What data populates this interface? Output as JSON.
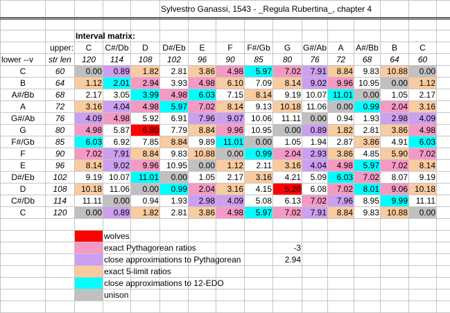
{
  "title": "Sylvestro Ganassi, 1543 - _Regula Rubertina_, chapter 4",
  "matrix_label": "Interval matrix:",
  "upper_label": "upper:",
  "lower_label": "lower --v",
  "strlen_label": "str len",
  "colors": {
    "g": "#c0c0c0",
    "v": "#cc9ff0",
    "o": "#f9cba0",
    "w": "#ffffff",
    "p": "#f49ac4",
    "c": "#00ffff",
    "r": "#ff0000"
  },
  "columns": [
    {
      "note": "C",
      "len": "120"
    },
    {
      "note": "C#/Db",
      "len": "114"
    },
    {
      "note": "D",
      "len": "108"
    },
    {
      "note": "D#/Eb",
      "len": "102"
    },
    {
      "note": "E",
      "len": "96"
    },
    {
      "note": "F",
      "len": "90"
    },
    {
      "note": "F#/Gb",
      "len": "85"
    },
    {
      "note": "G",
      "len": "80"
    },
    {
      "note": "G#/Ab",
      "len": "76"
    },
    {
      "note": "A",
      "len": "72"
    },
    {
      "note": "A#/Bb",
      "len": "68"
    },
    {
      "note": "B",
      "len": "64"
    },
    {
      "note": "C",
      "len": "60"
    }
  ],
  "rows": [
    {
      "note": "C",
      "len": "60",
      "cells": [
        [
          "0.00",
          "g"
        ],
        [
          "0.89",
          "v"
        ],
        [
          "1.82",
          "o"
        ],
        [
          "2.81",
          "w"
        ],
        [
          "3.86",
          "o"
        ],
        [
          "4.98",
          "p"
        ],
        [
          "5.97",
          "c"
        ],
        [
          "7.02",
          "p"
        ],
        [
          "7.91",
          "v"
        ],
        [
          "8.84",
          "o"
        ],
        [
          "9.83",
          "w"
        ],
        [
          "10.88",
          "o"
        ],
        [
          "0.00",
          "g"
        ]
      ]
    },
    {
      "note": "B",
      "len": "64",
      "cells": [
        [
          "1.12",
          "o"
        ],
        [
          "2.01",
          "c"
        ],
        [
          "2.94",
          "p"
        ],
        [
          "3.93",
          "w"
        ],
        [
          "4.98",
          "p"
        ],
        [
          "6.10",
          "o"
        ],
        [
          "7.09",
          "w"
        ],
        [
          "8.14",
          "o"
        ],
        [
          "9.02",
          "v"
        ],
        [
          "9.96",
          "p"
        ],
        [
          "10.95",
          "w"
        ],
        [
          "0.00",
          "g"
        ],
        [
          "1.12",
          "o"
        ]
      ]
    },
    {
      "note": "A#/Bb",
      "len": "68",
      "cells": [
        [
          "2.17",
          "w"
        ],
        [
          "3.05",
          "w"
        ],
        [
          "3.99",
          "c"
        ],
        [
          "4.98",
          "p"
        ],
        [
          "6.03",
          "c"
        ],
        [
          "7.15",
          "w"
        ],
        [
          "8.14",
          "o"
        ],
        [
          "9.19",
          "w"
        ],
        [
          "10.07",
          "w"
        ],
        [
          "11.01",
          "c"
        ],
        [
          "0.00",
          "g"
        ],
        [
          "1.05",
          "w"
        ],
        [
          "2.17",
          "w"
        ]
      ]
    },
    {
      "note": "A",
      "len": "72",
      "cells": [
        [
          "3.16",
          "o"
        ],
        [
          "4.04",
          "v"
        ],
        [
          "4.98",
          "p"
        ],
        [
          "5.97",
          "c"
        ],
        [
          "7.02",
          "p"
        ],
        [
          "8.14",
          "o"
        ],
        [
          "9.13",
          "w"
        ],
        [
          "10.18",
          "o"
        ],
        [
          "11.06",
          "w"
        ],
        [
          "0.00",
          "g"
        ],
        [
          "0.99",
          "c"
        ],
        [
          "2.04",
          "p"
        ],
        [
          "3.16",
          "o"
        ]
      ]
    },
    {
      "note": "G#/Ab",
      "len": "76",
      "cells": [
        [
          "4.09",
          "v"
        ],
        [
          "4.98",
          "p"
        ],
        [
          "5.92",
          "w"
        ],
        [
          "6.91",
          "w"
        ],
        [
          "7.96",
          "v"
        ],
        [
          "9.07",
          "v"
        ],
        [
          "10.06",
          "w"
        ],
        [
          "11.11",
          "w"
        ],
        [
          "0.00",
          "g"
        ],
        [
          "0.94",
          "w"
        ],
        [
          "1.93",
          "w"
        ],
        [
          "2.98",
          "v"
        ],
        [
          "4.09",
          "v"
        ]
      ]
    },
    {
      "note": "G",
      "len": "80",
      "cells": [
        [
          "4.98",
          "p"
        ],
        [
          "5.87",
          "w"
        ],
        [
          "6.80",
          "r"
        ],
        [
          "7.79",
          "w"
        ],
        [
          "8.84",
          "o"
        ],
        [
          "9.96",
          "p"
        ],
        [
          "10.95",
          "w"
        ],
        [
          "0.00",
          "g"
        ],
        [
          "0.89",
          "v"
        ],
        [
          "1.82",
          "o"
        ],
        [
          "2.81",
          "w"
        ],
        [
          "3.86",
          "o"
        ],
        [
          "4.98",
          "p"
        ]
      ]
    },
    {
      "note": "F#/Gb",
      "len": "85",
      "cells": [
        [
          "6.03",
          "c"
        ],
        [
          "6.92",
          "w"
        ],
        [
          "7.85",
          "w"
        ],
        [
          "8.84",
          "o"
        ],
        [
          "9.89",
          "w"
        ],
        [
          "11.01",
          "c"
        ],
        [
          "0.00",
          "g"
        ],
        [
          "1.05",
          "w"
        ],
        [
          "1.94",
          "w"
        ],
        [
          "2.87",
          "w"
        ],
        [
          "3.86",
          "o"
        ],
        [
          "4.91",
          "w"
        ],
        [
          "6.03",
          "c"
        ]
      ]
    },
    {
      "note": "F",
      "len": "90",
      "cells": [
        [
          "7.02",
          "p"
        ],
        [
          "7.91",
          "v"
        ],
        [
          "8.84",
          "o"
        ],
        [
          "9.83",
          "w"
        ],
        [
          "10.88",
          "o"
        ],
        [
          "0.00",
          "g"
        ],
        [
          "0.99",
          "c"
        ],
        [
          "2.04",
          "p"
        ],
        [
          "2.93",
          "v"
        ],
        [
          "3.86",
          "o"
        ],
        [
          "4.85",
          "w"
        ],
        [
          "5.90",
          "o"
        ],
        [
          "7.02",
          "p"
        ]
      ]
    },
    {
      "note": "E",
      "len": "96",
      "cells": [
        [
          "8.14",
          "o"
        ],
        [
          "9.02",
          "v"
        ],
        [
          "9.96",
          "p"
        ],
        [
          "10.95",
          "w"
        ],
        [
          "0.00",
          "g"
        ],
        [
          "1.12",
          "o"
        ],
        [
          "2.11",
          "w"
        ],
        [
          "3.16",
          "o"
        ],
        [
          "4.04",
          "v"
        ],
        [
          "4.98",
          "p"
        ],
        [
          "5.97",
          "c"
        ],
        [
          "7.02",
          "p"
        ],
        [
          "8.14",
          "o"
        ]
      ]
    },
    {
      "note": "D#/Eb",
      "len": "102",
      "cells": [
        [
          "9.19",
          "w"
        ],
        [
          "10.07",
          "w"
        ],
        [
          "11.01",
          "c"
        ],
        [
          "0.00",
          "g"
        ],
        [
          "1.05",
          "w"
        ],
        [
          "2.17",
          "w"
        ],
        [
          "3.16",
          "o"
        ],
        [
          "4.21",
          "w"
        ],
        [
          "5.09",
          "w"
        ],
        [
          "6.03",
          "c"
        ],
        [
          "7.02",
          "p"
        ],
        [
          "8.07",
          "w"
        ],
        [
          "9.19",
          "w"
        ]
      ]
    },
    {
      "note": "D",
      "len": "108",
      "cells": [
        [
          "10.18",
          "o"
        ],
        [
          "11.06",
          "w"
        ],
        [
          "0.00",
          "g"
        ],
        [
          "0.99",
          "c"
        ],
        [
          "2.04",
          "p"
        ],
        [
          "3.16",
          "o"
        ],
        [
          "4.15",
          "w"
        ],
        [
          "5.20",
          "r"
        ],
        [
          "6.08",
          "w"
        ],
        [
          "7.02",
          "p"
        ],
        [
          "8.01",
          "c"
        ],
        [
          "9.06",
          "p"
        ],
        [
          "10.18",
          "o"
        ]
      ]
    },
    {
      "note": "C#/Db",
      "len": "114",
      "cells": [
        [
          "11.11",
          "w"
        ],
        [
          "0.00",
          "g"
        ],
        [
          "0.94",
          "w"
        ],
        [
          "1.93",
          "w"
        ],
        [
          "2.98",
          "v"
        ],
        [
          "4.09",
          "v"
        ],
        [
          "5.08",
          "w"
        ],
        [
          "6.13",
          "w"
        ],
        [
          "7.02",
          "p"
        ],
        [
          "7.96",
          "v"
        ],
        [
          "8.95",
          "w"
        ],
        [
          "9.99",
          "c"
        ],
        [
          "11.11",
          "w"
        ]
      ]
    },
    {
      "note": "C",
      "len": "120",
      "cells": [
        [
          "0.00",
          "g"
        ],
        [
          "0.89",
          "v"
        ],
        [
          "1.82",
          "o"
        ],
        [
          "2.81",
          "w"
        ],
        [
          "3.86",
          "o"
        ],
        [
          "4.98",
          "p"
        ],
        [
          "5.97",
          "c"
        ],
        [
          "7.02",
          "p"
        ],
        [
          "7.91",
          "v"
        ],
        [
          "8.84",
          "o"
        ],
        [
          "9.83",
          "w"
        ],
        [
          "10.88",
          "o"
        ],
        [
          "0.00",
          "g"
        ]
      ]
    }
  ],
  "legend": [
    {
      "label": "wolves",
      "color": "r",
      "value": ""
    },
    {
      "label": "exact Pythagorean ratios",
      "color": "p",
      "value": "-3"
    },
    {
      "label": "close approximations to Pythagorean",
      "color": "v",
      "value": "2.94"
    },
    {
      "label": "exact 5-limit ratios",
      "color": "o",
      "value": ""
    },
    {
      "label": "close approximations to 12-EDO",
      "color": "c",
      "value": ""
    },
    {
      "label": "unison",
      "color": "g",
      "value": ""
    }
  ]
}
